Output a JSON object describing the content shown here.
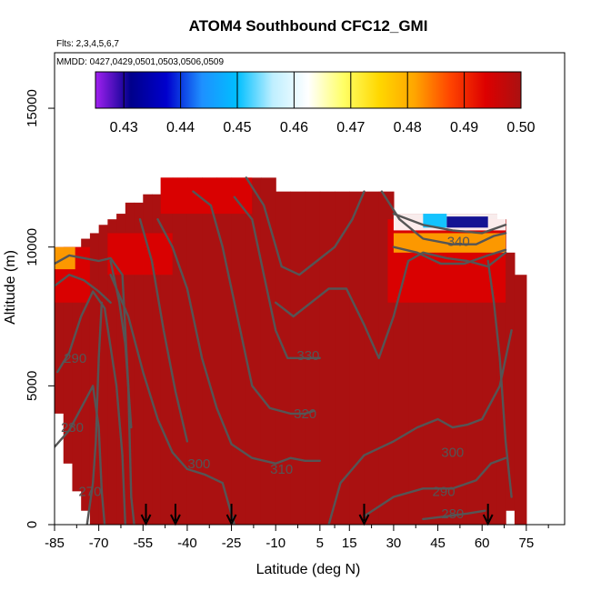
{
  "chart_data": {
    "type": "heatmap",
    "title": "ATOM4 Southbound CFC12_GMI",
    "flights_label": "Flts: 2,3,4,5,6,7",
    "dates_label": "MMDD: 0427,0429,0501,0503,0506,0509",
    "xlabel": "Latitude (deg N)",
    "ylabel": "Altitude (m)",
    "xlim": [
      -85,
      88
    ],
    "ylim": [
      0,
      17000
    ],
    "x_ticks": [
      -85,
      -70,
      -55,
      -40,
      -25,
      -10,
      5,
      15,
      30,
      45,
      60,
      75
    ],
    "x_tick_labels": [
      "-85",
      "-70",
      "-55",
      "-40",
      "-25",
      "-10",
      "5",
      "15",
      "30",
      "45",
      "60",
      "75"
    ],
    "x_minor_ticks": [
      -77.5,
      -62.5,
      -47.5,
      -32.5,
      -17.5,
      -2.5,
      10,
      22.5,
      37.5,
      52.5,
      67.5,
      82.5
    ],
    "y_ticks": [
      0,
      5000,
      10000,
      15000
    ],
    "y_tick_labels": [
      "0",
      "5000",
      "10000",
      "15000"
    ],
    "colorbar": {
      "min": 0.425,
      "max": 0.5,
      "ticks": [
        0.43,
        0.44,
        0.45,
        0.46,
        0.47,
        0.48,
        0.49,
        0.5
      ],
      "tick_labels": [
        "0.43",
        "0.44",
        "0.45",
        "0.46",
        "0.47",
        "0.48",
        "0.49",
        "0.50"
      ],
      "colors": [
        "#a020f0",
        "#00008b",
        "#0000cd",
        "#1e90ff",
        "#00bfff",
        "#bfefff",
        "#ffffff",
        "#ffff66",
        "#ffd700",
        "#ffa500",
        "#ff4500",
        "#dd0000",
        "#aa1111"
      ]
    },
    "background_value": 0.5,
    "data_columns": [
      {
        "lat": -85,
        "bottom": 4000,
        "top": 9800
      },
      {
        "lat": -82,
        "bottom": 2200,
        "top": 10000
      },
      {
        "lat": -79,
        "bottom": 1200,
        "top": 10000
      },
      {
        "lat": -76,
        "bottom": 500,
        "top": 10300
      },
      {
        "lat": -73,
        "bottom": 0,
        "top": 10500
      },
      {
        "lat": -70,
        "bottom": 0,
        "top": 10800
      },
      {
        "lat": -67,
        "bottom": 0,
        "top": 11000
      },
      {
        "lat": -64,
        "bottom": 0,
        "top": 11200
      },
      {
        "lat": -61,
        "bottom": 0,
        "top": 11600
      },
      {
        "lat": -58,
        "bottom": 0,
        "top": 11600
      },
      {
        "lat": -55,
        "bottom": 0,
        "top": 11900
      },
      {
        "lat": -52,
        "bottom": 0,
        "top": 11900
      },
      {
        "lat": -49,
        "bottom": 0,
        "top": 12500
      },
      {
        "lat": -45,
        "bottom": 0,
        "top": 12500
      },
      {
        "lat": -40,
        "bottom": 0,
        "top": 12500
      },
      {
        "lat": -35,
        "bottom": 0,
        "top": 12500
      },
      {
        "lat": -30,
        "bottom": 0,
        "top": 12500
      },
      {
        "lat": -25,
        "bottom": 0,
        "top": 12500
      },
      {
        "lat": -20,
        "bottom": 0,
        "top": 12500
      },
      {
        "lat": -15,
        "bottom": 0,
        "top": 12500
      },
      {
        "lat": -10,
        "bottom": 0,
        "top": 12000
      },
      {
        "lat": -5,
        "bottom": 0,
        "top": 12000
      },
      {
        "lat": 0,
        "bottom": 0,
        "top": 12000
      },
      {
        "lat": 5,
        "bottom": 0,
        "top": 12000
      },
      {
        "lat": 10,
        "bottom": 0,
        "top": 12000
      },
      {
        "lat": 15,
        "bottom": 0,
        "top": 12000
      },
      {
        "lat": 20,
        "bottom": 0,
        "top": 12000
      },
      {
        "lat": 25,
        "bottom": 0,
        "top": 12000
      },
      {
        "lat": 30,
        "bottom": 0,
        "top": 11200
      },
      {
        "lat": 35,
        "bottom": 0,
        "top": 11200
      },
      {
        "lat": 40,
        "bottom": 0,
        "top": 11200
      },
      {
        "lat": 45,
        "bottom": 0,
        "top": 11200
      },
      {
        "lat": 50,
        "bottom": 0,
        "top": 11200
      },
      {
        "lat": 55,
        "bottom": 0,
        "top": 11200
      },
      {
        "lat": 60,
        "bottom": 0,
        "top": 11200
      },
      {
        "lat": 65,
        "bottom": 0,
        "top": 11000
      },
      {
        "lat": 68,
        "bottom": 500,
        "top": 9800
      },
      {
        "lat": 71,
        "bottom": 0,
        "top": 9000
      }
    ],
    "anomalies": [
      {
        "name": "south-upper-red",
        "lat0": -85,
        "lat1": -73,
        "alt0": 8000,
        "alt1": 10000,
        "value": 0.492
      },
      {
        "name": "south-upper-orange",
        "lat0": -85,
        "lat1": -78,
        "alt0": 9200,
        "alt1": 10000,
        "value": 0.484
      },
      {
        "name": "tropopause-red-south",
        "lat0": -67,
        "lat1": -45,
        "alt0": 9000,
        "alt1": 10500,
        "value": 0.494
      },
      {
        "name": "top-red-mid",
        "lat0": -49,
        "lat1": -18,
        "alt0": 11200,
        "alt1": 12500,
        "value": 0.495
      },
      {
        "name": "north-red-upper",
        "lat0": 28,
        "lat1": 68,
        "alt0": 8000,
        "alt1": 11000,
        "value": 0.494
      },
      {
        "name": "north-low-band",
        "lat0": 30,
        "lat1": 68,
        "alt0": 10600,
        "alt1": 11200,
        "value": 0.46
      },
      {
        "name": "north-low-core",
        "lat0": 48,
        "lat1": 62,
        "alt0": 10700,
        "alt1": 11100,
        "value": 0.432
      },
      {
        "name": "north-orange-upper",
        "lat0": 30,
        "lat1": 68,
        "alt0": 9800,
        "alt1": 10500,
        "value": 0.482
      },
      {
        "name": "north-lowcore-west",
        "lat0": 40,
        "lat1": 48,
        "alt0": 10700,
        "alt1": 11200,
        "value": 0.452
      }
    ],
    "contours": [
      {
        "label": "290",
        "points": [
          [
            -84,
            5500
          ],
          [
            -80,
            6200
          ],
          [
            -76,
            7500
          ],
          [
            -72,
            8400
          ],
          [
            -68,
            7800
          ],
          [
            -64,
            5000
          ],
          [
            -62,
            2500
          ],
          [
            -61,
            0
          ]
        ],
        "label_at": [
          -78,
          6000
        ]
      },
      {
        "label": "280",
        "points": [
          [
            -85,
            2800
          ],
          [
            -80,
            3400
          ],
          [
            -76,
            4200
          ],
          [
            -72,
            5000
          ],
          [
            -70,
            3500
          ],
          [
            -69,
            1200
          ],
          [
            -68,
            0
          ]
        ],
        "label_at": [
          -79,
          3500
        ]
      },
      {
        "label": "270",
        "points": [
          [
            -74,
            0
          ],
          [
            -72,
            1500
          ],
          [
            -71,
            3000
          ],
          [
            -70,
            6000
          ],
          [
            -69,
            8000
          ]
        ],
        "label_at": [
          -73,
          1200
        ]
      },
      {
        "label": "300",
        "points": [
          [
            -66,
            9000
          ],
          [
            -60,
            7500
          ],
          [
            -55,
            5500
          ],
          [
            -50,
            3800
          ],
          [
            -45,
            2600
          ],
          [
            -40,
            2000
          ],
          [
            -34,
            1800
          ],
          [
            -28,
            1500
          ],
          [
            -24,
            0
          ]
        ],
        "label_at": [
          -36,
          2200
        ]
      },
      {
        "label": "310",
        "points": [
          [
            -50,
            11000
          ],
          [
            -45,
            10000
          ],
          [
            -40,
            8500
          ],
          [
            -35,
            6000
          ],
          [
            -30,
            4200
          ],
          [
            -25,
            2900
          ],
          [
            -18,
            2400
          ],
          [
            -10,
            2200
          ],
          [
            -5,
            2400
          ],
          [
            0,
            2300
          ],
          [
            5,
            2300
          ]
        ],
        "label_at": [
          -8,
          2000
        ]
      },
      {
        "label": "320",
        "points": [
          [
            -38,
            12000
          ],
          [
            -32,
            11500
          ],
          [
            -28,
            10000
          ],
          [
            -22,
            7000
          ],
          [
            -18,
            5000
          ],
          [
            -12,
            4200
          ],
          [
            -5,
            4000
          ],
          [
            0,
            4000
          ],
          [
            3,
            4100
          ]
        ],
        "label_at": [
          0,
          4000
        ]
      },
      {
        "label": "330",
        "points": [
          [
            -24,
            11800
          ],
          [
            -18,
            11000
          ],
          [
            -14,
            9000
          ],
          [
            -10,
            7000
          ],
          [
            -6,
            6000
          ],
          [
            0,
            6000
          ],
          [
            5,
            6000
          ]
        ],
        "label_at": [
          1,
          6100
        ]
      },
      {
        "label": "300",
        "points": [
          [
            8,
            0
          ],
          [
            12,
            1500
          ],
          [
            20,
            2500
          ],
          [
            30,
            3000
          ],
          [
            38,
            3500
          ],
          [
            45,
            3800
          ],
          [
            50,
            3500
          ],
          [
            55,
            3600
          ],
          [
            60,
            3800
          ],
          [
            66,
            5000
          ],
          [
            70,
            7000
          ]
        ],
        "label_at": [
          50,
          2600
        ]
      },
      {
        "label": "290",
        "points": [
          [
            20,
            300
          ],
          [
            30,
            1000
          ],
          [
            40,
            1300
          ],
          [
            50,
            1300
          ],
          [
            58,
            1600
          ],
          [
            63,
            2200
          ],
          [
            68,
            2400
          ]
        ],
        "label_at": [
          47,
          1200
        ]
      },
      {
        "label": "280",
        "points": [
          [
            40,
            200
          ],
          [
            48,
            300
          ],
          [
            55,
            400
          ],
          [
            61,
            500
          ]
        ],
        "label_at": [
          50,
          400
        ]
      },
      {
        "label": "",
        "points": [
          [
            -10,
            8000
          ],
          [
            -4,
            7500
          ],
          [
            2,
            8000
          ],
          [
            8,
            8500
          ],
          [
            14,
            8500
          ],
          [
            20,
            7200
          ],
          [
            25,
            6000
          ],
          [
            30,
            7500
          ],
          [
            35,
            9500
          ],
          [
            40,
            9800
          ],
          [
            48,
            9600
          ],
          [
            55,
            9500
          ],
          [
            62,
            9300
          ],
          [
            68,
            9800
          ]
        ],
        "label_at": null
      },
      {
        "label": "",
        "points": [
          [
            -20,
            12500
          ],
          [
            -14,
            11500
          ],
          [
            -8,
            9300
          ],
          [
            -2,
            9000
          ],
          [
            4,
            9500
          ],
          [
            10,
            10000
          ],
          [
            16,
            11000
          ],
          [
            20,
            12000
          ]
        ],
        "label_at": null
      },
      {
        "label": "340",
        "points": [
          [
            26,
            12000
          ],
          [
            32,
            11000
          ],
          [
            40,
            10300
          ],
          [
            50,
            10100
          ],
          [
            58,
            10100
          ],
          [
            64,
            10400
          ],
          [
            68,
            10500
          ]
        ],
        "label_at": [
          52,
          10200
        ]
      },
      {
        "label": "",
        "points": [
          [
            30,
            11200
          ],
          [
            40,
            10800
          ],
          [
            50,
            10600
          ],
          [
            60,
            10500
          ],
          [
            68,
            10800
          ]
        ],
        "label_at": null
      },
      {
        "label": "",
        "points": [
          [
            30,
            10000
          ],
          [
            38,
            9800
          ],
          [
            46,
            9400
          ],
          [
            54,
            9400
          ],
          [
            62,
            9700
          ],
          [
            68,
            9900
          ]
        ],
        "label_at": null
      },
      {
        "label": "",
        "points": [
          [
            -85,
            9400
          ],
          [
            -80,
            9700
          ],
          [
            -75,
            9600
          ],
          [
            -70,
            9500
          ],
          [
            -66,
            9600
          ],
          [
            -62,
            9000
          ],
          [
            -60,
            5000
          ],
          [
            -59,
            1000
          ],
          [
            -58,
            0
          ]
        ],
        "label_at": null
      },
      {
        "label": "",
        "points": [
          [
            -85,
            8600
          ],
          [
            -80,
            9000
          ],
          [
            -75,
            8800
          ],
          [
            -70,
            8400
          ],
          [
            -66,
            8000
          ]
        ],
        "label_at": null
      },
      {
        "label": "",
        "points": [
          [
            -66,
            9500
          ],
          [
            -63,
            8000
          ],
          [
            -61,
            6500
          ],
          [
            -59,
            3500
          ]
        ],
        "label_at": null
      },
      {
        "label": "",
        "points": [
          [
            -56,
            11000
          ],
          [
            -52,
            9500
          ],
          [
            -48,
            7000
          ],
          [
            -44,
            4800
          ],
          [
            -40,
            3000
          ]
        ],
        "label_at": null
      },
      {
        "label": "",
        "points": [
          [
            62,
            9500
          ],
          [
            64,
            8000
          ],
          [
            66,
            6000
          ],
          [
            68,
            3000
          ],
          [
            70,
            1000
          ]
        ],
        "label_at": null
      }
    ],
    "flight_arrows": [
      -54,
      -44,
      -25,
      20,
      62
    ]
  }
}
